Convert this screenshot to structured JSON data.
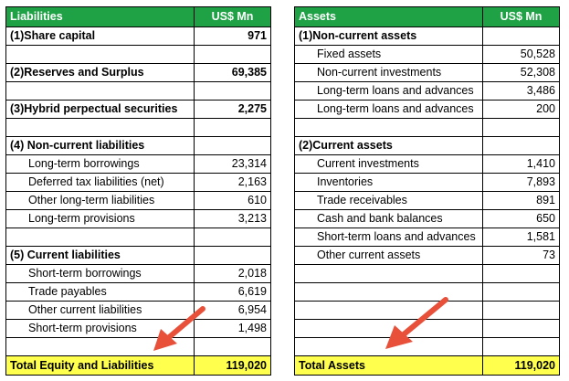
{
  "liabilities": {
    "header": {
      "label": "Liabilities",
      "amount": "US$ Mn"
    },
    "rows": [
      {
        "type": "head",
        "label": "(1)Share capital",
        "amount": "971"
      },
      {
        "type": "blank",
        "label": "",
        "amount": ""
      },
      {
        "type": "head",
        "label": "(2)Reserves and Surplus",
        "amount": "69,385"
      },
      {
        "type": "blank",
        "label": "",
        "amount": ""
      },
      {
        "type": "head",
        "label": "(3)Hybrid perpectual securities",
        "amount": "2,275"
      },
      {
        "type": "blank",
        "label": "",
        "amount": ""
      },
      {
        "type": "head",
        "label": "(4) Non-current liabilities",
        "amount": ""
      },
      {
        "type": "item",
        "label": "Long-term borrowings",
        "amount": "23,314"
      },
      {
        "type": "item",
        "label": "Deferred tax liabilities (net)",
        "amount": "2,163"
      },
      {
        "type": "item",
        "label": "Other long-term liabilities",
        "amount": "610"
      },
      {
        "type": "item",
        "label": "Long-term provisions",
        "amount": "3,213"
      },
      {
        "type": "blank",
        "label": "",
        "amount": ""
      },
      {
        "type": "head",
        "label": "(5) Current liabilities",
        "amount": ""
      },
      {
        "type": "item",
        "label": "Short-term borrowings",
        "amount": "2,018"
      },
      {
        "type": "item",
        "label": "Trade payables",
        "amount": "6,619"
      },
      {
        "type": "item",
        "label": "Other current liabilities",
        "amount": "6,954"
      },
      {
        "type": "item",
        "label": "Short-term provisions",
        "amount": "1,498"
      },
      {
        "type": "blank",
        "label": "",
        "amount": ""
      }
    ],
    "total": {
      "label": "Total Equity and Liabilities",
      "amount": "119,020"
    }
  },
  "assets": {
    "header": {
      "label": "Assets",
      "amount": "US$ Mn"
    },
    "rows": [
      {
        "type": "head",
        "label": "(1)Non-current assets",
        "amount": ""
      },
      {
        "type": "item",
        "label": "Fixed assets",
        "amount": "50,528"
      },
      {
        "type": "item",
        "label": "Non-current investments",
        "amount": "52,308"
      },
      {
        "type": "item",
        "label": "Long-term loans and advances",
        "amount": "3,486"
      },
      {
        "type": "item",
        "label": "Long-term loans and advances",
        "amount": "200"
      },
      {
        "type": "blank",
        "label": "",
        "amount": ""
      },
      {
        "type": "head",
        "label": "(2)Current assets",
        "amount": ""
      },
      {
        "type": "item",
        "label": "Current investments",
        "amount": "1,410"
      },
      {
        "type": "item",
        "label": "Inventories",
        "amount": "7,893"
      },
      {
        "type": "item",
        "label": "Trade receivables",
        "amount": "891"
      },
      {
        "type": "item",
        "label": "Cash and bank balances",
        "amount": "650"
      },
      {
        "type": "item",
        "label": "Short-term loans and advances",
        "amount": "1,581"
      },
      {
        "type": "item",
        "label": "Other current assets",
        "amount": "73"
      },
      {
        "type": "blank",
        "label": "",
        "amount": ""
      },
      {
        "type": "blank",
        "label": "",
        "amount": ""
      },
      {
        "type": "blank",
        "label": "",
        "amount": ""
      },
      {
        "type": "blank",
        "label": "",
        "amount": ""
      },
      {
        "type": "blank",
        "label": "",
        "amount": ""
      }
    ],
    "total": {
      "label": "Total Assets",
      "amount": "119,020"
    }
  },
  "colors": {
    "header_bg": "#1fa245",
    "total_bg": "#ffff4d",
    "arrow": "#e8503a"
  },
  "annotations": [
    {
      "icon": "red-arrow-icon"
    },
    {
      "icon": "red-arrow-icon"
    }
  ]
}
